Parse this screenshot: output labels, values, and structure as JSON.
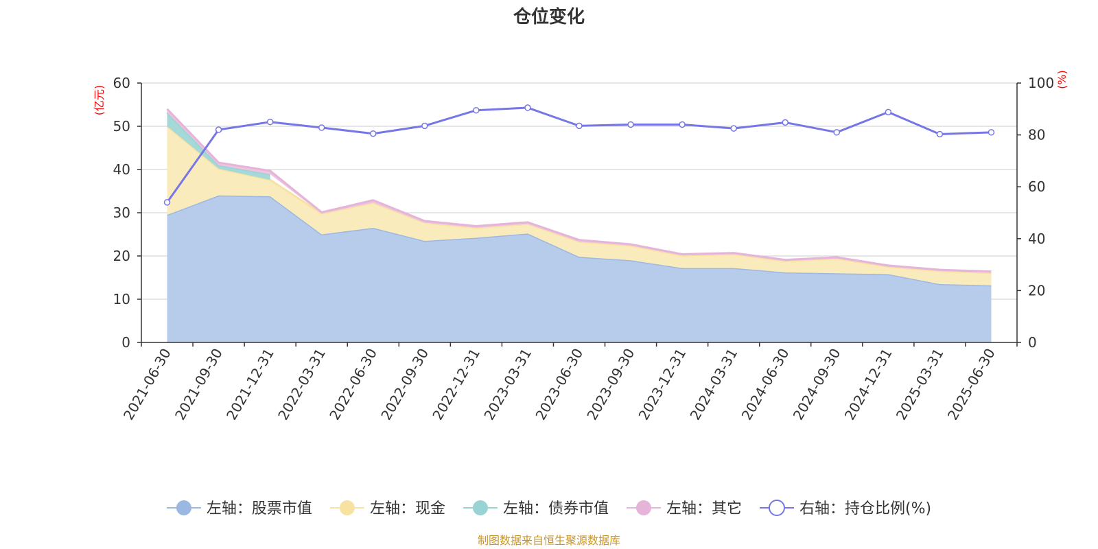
{
  "chart_data": {
    "type": "area",
    "title": "仓位变化",
    "categories": [
      "2021-06-30",
      "2021-09-30",
      "2021-12-31",
      "2022-03-31",
      "2022-06-30",
      "2022-09-30",
      "2022-12-31",
      "2023-03-31",
      "2023-06-30",
      "2023-09-30",
      "2023-12-31",
      "2024-03-31",
      "2024-06-30",
      "2024-09-30",
      "2024-12-31",
      "2025-03-31",
      "2025-06-30"
    ],
    "left_axis": {
      "unit": "(亿元)",
      "ylim": [
        0,
        60
      ],
      "ticks": [
        "0",
        "10",
        "20",
        "30",
        "40",
        "50",
        "60"
      ]
    },
    "right_axis": {
      "unit": "(%)",
      "ylim": [
        0,
        100
      ],
      "ticks": [
        "0",
        "20",
        "40",
        "60",
        "80",
        "100"
      ]
    },
    "grid": true,
    "legend_position": "bottom",
    "series": [
      {
        "name": "左轴：股票市值",
        "axis": "left",
        "stack": true,
        "color": "#9bb8e2",
        "fill": "#b7cceb",
        "values": [
          29.5,
          34.0,
          33.8,
          25.0,
          26.5,
          23.5,
          24.2,
          25.2,
          19.8,
          19.0,
          17.2,
          17.2,
          16.2,
          16.0,
          15.8,
          13.5,
          13.2
        ]
      },
      {
        "name": "左轴：现金",
        "axis": "left",
        "stack": true,
        "color": "#f7e2a2",
        "fill": "#faebbd",
        "values": [
          20.5,
          6.2,
          3.8,
          4.8,
          5.8,
          4.2,
          2.3,
          2.2,
          3.5,
          3.4,
          2.9,
          3.2,
          2.6,
          3.4,
          1.7,
          3.0,
          2.9
        ]
      },
      {
        "name": "左轴：债券市值",
        "axis": "left",
        "stack": true,
        "color": "#9ad3d3",
        "fill": "#a5d9d7",
        "values": [
          3.2,
          0.8,
          1.3,
          null,
          null,
          null,
          null,
          null,
          null,
          null,
          null,
          null,
          null,
          null,
          null,
          null,
          null
        ]
      },
      {
        "name": "左轴：其它",
        "axis": "left",
        "stack": true,
        "color": "#e6b4d9",
        "fill": "#ecc4e2",
        "values": [
          0.8,
          0.6,
          0.8,
          0.3,
          0.6,
          0.4,
          0.4,
          0.4,
          0.4,
          0.3,
          0.3,
          0.3,
          0.3,
          0.3,
          0.3,
          0.3,
          0.3
        ]
      },
      {
        "name": "右轴：持仓比例(%)",
        "axis": "right",
        "type": "line",
        "color": "#7676e6",
        "values": [
          54.0,
          82.0,
          85.0,
          82.8,
          80.5,
          83.5,
          89.5,
          90.5,
          83.5,
          84.0,
          84.0,
          82.5,
          84.8,
          81.0,
          88.8,
          80.3,
          81.0
        ]
      }
    ]
  },
  "source_note": "制图数据来自恒生聚源数据库"
}
